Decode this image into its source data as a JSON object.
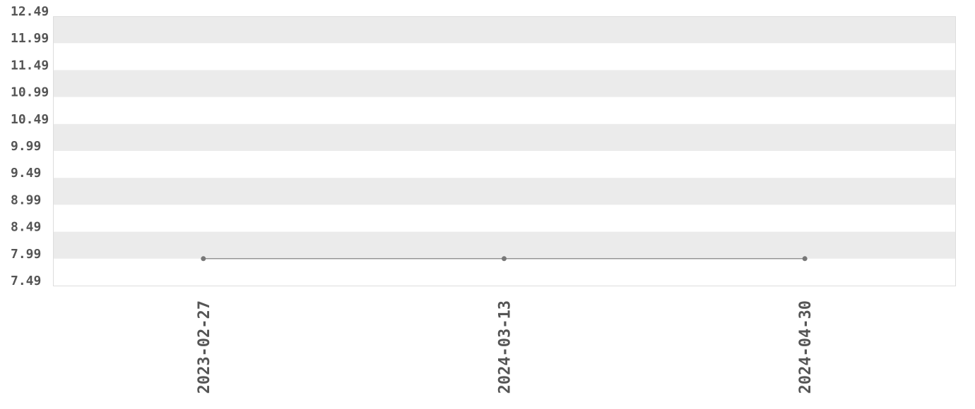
{
  "chart_data": {
    "type": "line",
    "categories": [
      "2023-02-27",
      "2024-03-13",
      "2024-04-30"
    ],
    "series": [
      {
        "color": "#777777",
        "values": [
          7.99,
          7.99,
          7.99
        ]
      }
    ],
    "ylim": [
      7.49,
      12.49
    ],
    "yticks": [
      7.49,
      7.99,
      8.49,
      8.99,
      9.49,
      9.99,
      10.49,
      10.99,
      11.49,
      11.99,
      12.49
    ],
    "grid": true
  }
}
